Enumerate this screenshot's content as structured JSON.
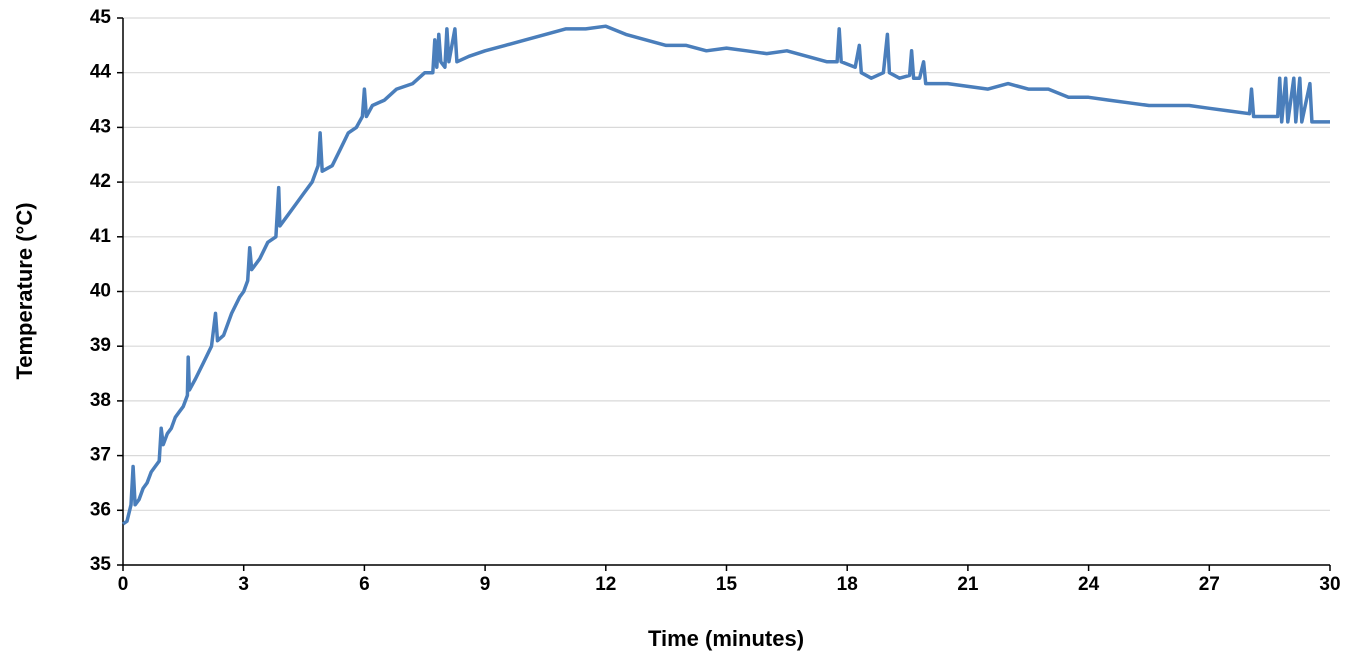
{
  "chart_data": {
    "type": "line",
    "xlabel": "Time (minutes)",
    "ylabel": "Temperature (°C)",
    "xlim": [
      0,
      30
    ],
    "xticks": [
      0,
      3,
      6,
      9,
      12,
      15,
      18,
      21,
      24,
      27,
      30
    ],
    "ylim": [
      35,
      45
    ],
    "yticks": [
      35,
      36,
      37,
      38,
      39,
      40,
      41,
      42,
      43,
      44,
      45
    ],
    "grid": true,
    "series": [
      {
        "name": "Temperature",
        "color": "#4a7ebb",
        "x": [
          0,
          0.1,
          0.2,
          0.25,
          0.3,
          0.4,
          0.5,
          0.6,
          0.7,
          0.8,
          0.9,
          0.95,
          1.0,
          1.1,
          1.2,
          1.3,
          1.4,
          1.5,
          1.6,
          1.62,
          1.65,
          1.8,
          2.0,
          2.2,
          2.3,
          2.35,
          2.5,
          2.7,
          2.9,
          3.0,
          3.1,
          3.15,
          3.2,
          3.4,
          3.6,
          3.8,
          3.87,
          3.9,
          4.1,
          4.3,
          4.5,
          4.7,
          4.85,
          4.9,
          4.95,
          5.2,
          5.4,
          5.6,
          5.8,
          5.95,
          6.0,
          6.05,
          6.2,
          6.5,
          6.8,
          7.2,
          7.5,
          7.7,
          7.75,
          7.8,
          7.85,
          7.9,
          8.0,
          8.05,
          8.1,
          8.25,
          8.3,
          8.6,
          9.0,
          9.5,
          10.0,
          10.5,
          11.0,
          11.5,
          12.0,
          12.5,
          13.0,
          13.5,
          14.0,
          14.5,
          15.0,
          15.5,
          16.0,
          16.5,
          17.0,
          17.5,
          17.75,
          17.8,
          17.85,
          18.2,
          18.3,
          18.35,
          18.6,
          18.9,
          19.0,
          19.05,
          19.3,
          19.55,
          19.6,
          19.65,
          19.8,
          19.9,
          19.95,
          20.5,
          21.0,
          21.5,
          22.0,
          22.5,
          23.0,
          23.5,
          24.0,
          24.5,
          25.0,
          25.5,
          26.0,
          26.5,
          27.0,
          27.5,
          28.0,
          28.05,
          28.1,
          28.7,
          28.75,
          28.8,
          28.9,
          28.95,
          29.1,
          29.15,
          29.25,
          29.3,
          29.5,
          29.55,
          30.0
        ],
        "values": [
          35.75,
          35.8,
          36.1,
          36.8,
          36.1,
          36.2,
          36.4,
          36.5,
          36.7,
          36.8,
          36.9,
          37.5,
          37.2,
          37.4,
          37.5,
          37.7,
          37.8,
          37.9,
          38.1,
          38.8,
          38.2,
          38.4,
          38.7,
          39.0,
          39.6,
          39.1,
          39.2,
          39.6,
          39.9,
          40.0,
          40.2,
          40.8,
          40.4,
          40.6,
          40.9,
          41.0,
          41.9,
          41.2,
          41.4,
          41.6,
          41.8,
          42.0,
          42.3,
          42.9,
          42.2,
          42.3,
          42.6,
          42.9,
          43.0,
          43.2,
          43.7,
          43.2,
          43.4,
          43.5,
          43.7,
          43.8,
          44.0,
          44.0,
          44.6,
          44.1,
          44.7,
          44.2,
          44.1,
          44.8,
          44.2,
          44.8,
          44.2,
          44.3,
          44.4,
          44.5,
          44.6,
          44.7,
          44.8,
          44.8,
          44.85,
          44.7,
          44.6,
          44.5,
          44.5,
          44.4,
          44.45,
          44.4,
          44.35,
          44.4,
          44.3,
          44.2,
          44.2,
          44.8,
          44.2,
          44.1,
          44.5,
          44.0,
          43.9,
          44.0,
          44.7,
          44.0,
          43.9,
          43.95,
          44.4,
          43.9,
          43.9,
          44.2,
          43.8,
          43.8,
          43.75,
          43.7,
          43.8,
          43.7,
          43.7,
          43.55,
          43.55,
          43.5,
          43.45,
          43.4,
          43.4,
          43.4,
          43.35,
          43.3,
          43.25,
          43.7,
          43.2,
          43.2,
          43.9,
          43.1,
          43.9,
          43.1,
          43.9,
          43.1,
          43.9,
          43.1,
          43.8,
          43.1,
          43.1
        ]
      }
    ]
  }
}
